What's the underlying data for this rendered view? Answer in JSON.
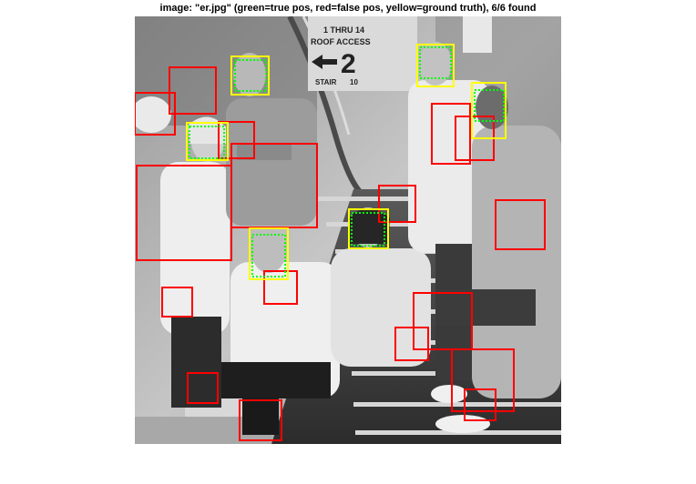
{
  "figure": {
    "title": "image: \"er.jpg\" (green=true pos, red=false pos, yellow=ground truth), 6/6 found"
  },
  "colors": {
    "true_pos": "#00ff00",
    "false_pos": "#ff0000",
    "ground_truth": "#ffff00"
  },
  "signs": {
    "line1": "1 THRU 14",
    "line2": "ROOF ACCESS",
    "number": "2",
    "line3": "STAIR",
    "line4": "10"
  },
  "detections": {
    "found": 6,
    "total": 6
  }
}
